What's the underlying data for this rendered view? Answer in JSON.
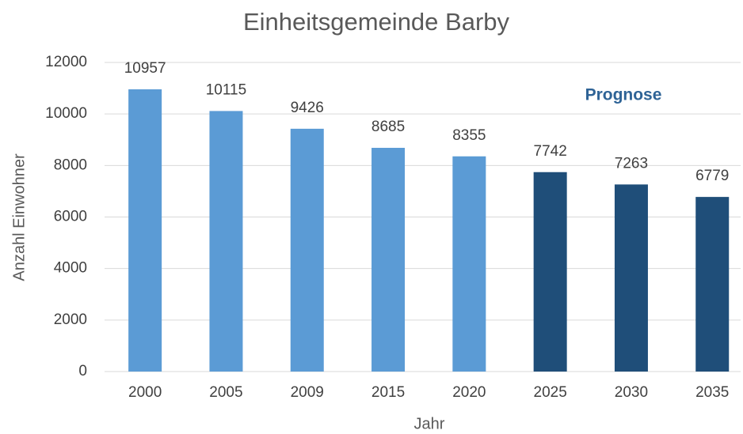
{
  "chart_data": {
    "type": "bar",
    "title": "Einheitsgemeinde Barby",
    "x_label": "Jahr",
    "y_label": "Anzahl Einwohner",
    "annotation": "Prognose",
    "categories": [
      "2000",
      "2005",
      "2009",
      "2015",
      "2020",
      "2025",
      "2030",
      "2035"
    ],
    "values": [
      10957,
      10115,
      9426,
      8685,
      8355,
      7742,
      7263,
      6779
    ],
    "colors": [
      "#5b9bd5",
      "#5b9bd5",
      "#5b9bd5",
      "#5b9bd5",
      "#5b9bd5",
      "#1f4e79",
      "#1f4e79",
      "#1f4e79"
    ],
    "ylim": [
      0,
      12000
    ],
    "yticks": [
      0,
      2000,
      4000,
      6000,
      8000,
      10000,
      12000
    ],
    "grid": true
  }
}
